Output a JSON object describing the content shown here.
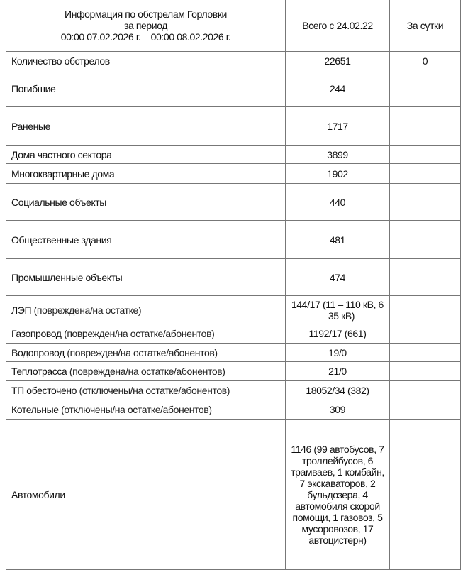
{
  "header": {
    "title_lines": [
      "Информация по обстрелам Горловки",
      "за период",
      "00:00 07.02.2026 г. – 00:00 08.02.2026 г."
    ],
    "col_total": "Всего с 24.02.22",
    "col_day": "За сутки"
  },
  "rows": [
    {
      "label": "Количество обстрелов",
      "note": "",
      "total": "22651",
      "day": "0"
    },
    {
      "label": "Погибшие",
      "note": "",
      "total": "244",
      "day": ""
    },
    {
      "label": "Раненые",
      "note": "",
      "total": "1717",
      "day": ""
    },
    {
      "label": "Дома частного сектора",
      "note": "",
      "total": "3899",
      "day": ""
    },
    {
      "label": "Многоквартирные дома",
      "note": "",
      "total": "1902",
      "day": ""
    },
    {
      "label": "Социальные объекты",
      "note": "",
      "total": "440",
      "day": ""
    },
    {
      "label": "Общественные здания",
      "note": "",
      "total": "481",
      "day": ""
    },
    {
      "label": "Промышленные объекты",
      "note": "",
      "total": "474",
      "day": ""
    },
    {
      "label": "ЛЭП",
      "note": "(повреждена/на остатке)",
      "total": "144/17 (11 – 110 кВ, 6 – 35 кВ)",
      "day": ""
    },
    {
      "label": "Газопровод",
      "note": "(поврежден/на остатке/абонентов)",
      "total": "1192/17 (661)",
      "day": ""
    },
    {
      "label": "Водопровод",
      "note": "(поврежден/на остатке/абонентов)",
      "total": "19/0",
      "day": ""
    },
    {
      "label": "Теплотрасса",
      "note": "(повреждена/на остатке/абонентов)",
      "total": "21/0",
      "day": ""
    },
    {
      "label": "ТП обесточено",
      "note": "(отключены/на остатке/абонентов)",
      "total": "18052/34 (382)",
      "day": ""
    },
    {
      "label": "Котельные",
      "note": "(отключены/на остатке/абонентов)",
      "total": "309",
      "day": ""
    },
    {
      "label": "Автомобили",
      "note": "",
      "total": "1146 (99 автобусов, 7 троллейбусов, 6 трамваев, 1 комбайн, 7 экскаваторов, 2 бульдозера, 4 автомобиля скорой помощи, 1 газовоз, 5 мусоровозов, 17 автоцистерн)",
      "day": ""
    }
  ]
}
